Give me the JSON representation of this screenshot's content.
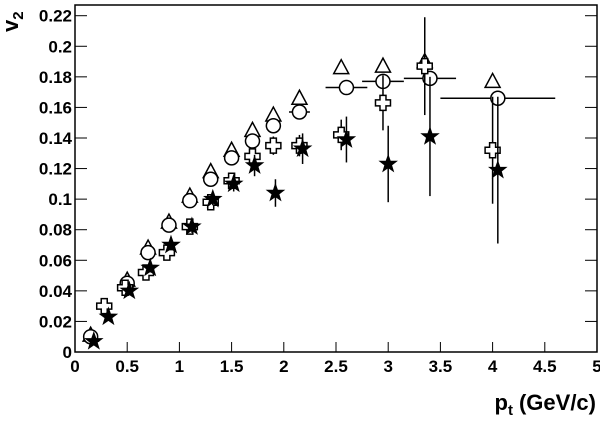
{
  "chart_data": {
    "type": "scatter",
    "xlabel": {
      "text": "p",
      "subscript": "t",
      "suffix": "(GeV/c)"
    },
    "ylabel": {
      "text": "v",
      "subscript": "2"
    },
    "xlim": [
      0,
      5
    ],
    "ylim": [
      0,
      0.227
    ],
    "xticks": [
      0,
      0.5,
      1,
      1.5,
      2,
      2.5,
      3,
      3.5,
      4,
      4.5,
      5
    ],
    "yticks": [
      0,
      0.02,
      0.04,
      0.06,
      0.08,
      0.1,
      0.12,
      0.14,
      0.16,
      0.18,
      0.2,
      0.22
    ],
    "series": [
      {
        "marker": "triangle",
        "color": "#000000",
        "x": [
          0.15,
          0.5,
          0.7,
          0.9,
          1.1,
          1.3,
          1.5,
          1.7,
          1.9,
          2.15,
          2.55,
          2.95,
          3.35,
          4.0
        ],
        "values": [
          0.011,
          0.047,
          0.068,
          0.085,
          0.102,
          0.118,
          0.132,
          0.145,
          0.155,
          0.166,
          0.186,
          0.187,
          0.19,
          0.177
        ]
      },
      {
        "marker": "circle",
        "color": "#000000",
        "x": [
          0.15,
          0.5,
          0.7,
          0.9,
          1.1,
          1.3,
          1.5,
          1.7,
          1.9,
          2.15,
          2.6,
          2.95,
          3.4,
          4.05
        ],
        "values": [
          0.01,
          0.045,
          0.065,
          0.083,
          0.099,
          0.113,
          0.127,
          0.138,
          0.148,
          0.157,
          0.173,
          0.177,
          0.179,
          0.166
        ],
        "xerr": [
          0.05,
          0.05,
          0.05,
          0.05,
          0.05,
          0.05,
          0.05,
          0.05,
          0.05,
          0.1,
          0.2,
          0.2,
          0.25,
          0.55
        ]
      },
      {
        "marker": "cross",
        "color": "#000000",
        "x": [
          0.28,
          0.48,
          0.68,
          0.88,
          1.1,
          1.3,
          1.5,
          1.7,
          1.9,
          2.15,
          2.55,
          2.95,
          3.35,
          4.0
        ],
        "values": [
          0.03,
          0.042,
          0.052,
          0.065,
          0.082,
          0.098,
          0.112,
          0.128,
          0.135,
          0.135,
          0.142,
          0.163,
          0.187,
          0.132
        ],
        "yerr": [
          0.003,
          0.003,
          0.003,
          0.003,
          0.003,
          0.004,
          0.004,
          0.005,
          0.006,
          0.007,
          0.01,
          0.018,
          0.032,
          0.035
        ]
      },
      {
        "marker": "star",
        "color": "#000000",
        "x": [
          0.18,
          0.32,
          0.52,
          0.72,
          0.92,
          1.12,
          1.32,
          1.52,
          1.72,
          1.92,
          2.18,
          2.6,
          3.0,
          3.4,
          4.05
        ],
        "values": [
          0.007,
          0.023,
          0.04,
          0.055,
          0.07,
          0.082,
          0.1,
          0.11,
          0.122,
          0.104,
          0.133,
          0.139,
          0.123,
          0.141,
          0.119
        ],
        "yerr": [
          0.002,
          0.002,
          0.003,
          0.003,
          0.003,
          0.004,
          0.004,
          0.005,
          0.007,
          0.009,
          0.01,
          0.015,
          0.025,
          0.039,
          0.048
        ]
      }
    ]
  }
}
